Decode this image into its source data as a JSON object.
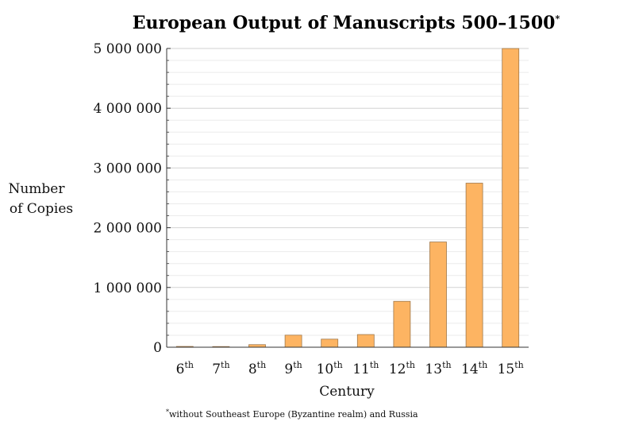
{
  "chart_data": {
    "type": "bar",
    "title": "European Output of Manuscripts 500–1500",
    "title_mark": "*",
    "ylabel_line1": "Number",
    "ylabel_line2": "of Copies",
    "xlabel": "Century",
    "categories": [
      {
        "num": "6",
        "suffix": "th"
      },
      {
        "num": "7",
        "suffix": "th"
      },
      {
        "num": "8",
        "suffix": "th"
      },
      {
        "num": "9",
        "suffix": "th"
      },
      {
        "num": "10",
        "suffix": "th"
      },
      {
        "num": "11",
        "suffix": "th"
      },
      {
        "num": "12",
        "suffix": "th"
      },
      {
        "num": "13",
        "suffix": "th"
      },
      {
        "num": "14",
        "suffix": "th"
      },
      {
        "num": "15",
        "suffix": "th"
      }
    ],
    "values": [
      13000,
      11000,
      43000,
      202000,
      135000,
      212000,
      768000,
      1761000,
      2746000,
      4999000
    ],
    "ylim": [
      0,
      5000000
    ],
    "yticks": [
      0,
      1000000,
      2000000,
      3000000,
      4000000,
      5000000
    ],
    "ytick_labels": [
      "0",
      "1 000 000",
      "2 000 000",
      "3 000 000",
      "4 000 000",
      "5 000 000"
    ],
    "minor_tick_step": 200000,
    "grid": true,
    "legend": "none",
    "bar_color": "#fdb462",
    "bar_edge_color": "#a0784a",
    "footnote_mark": "*",
    "footnote": "without Southeast Europe (Byzantine realm) and Russia"
  }
}
